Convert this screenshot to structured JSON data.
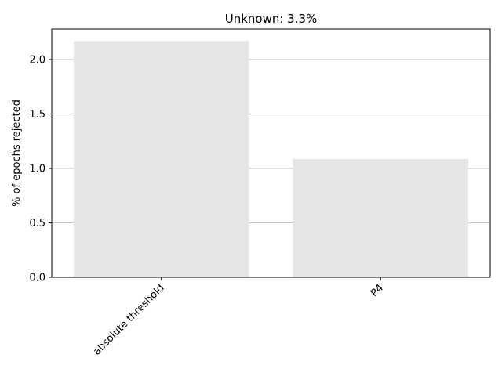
{
  "chart_data": {
    "type": "bar",
    "title": "Unknown: 3.3%",
    "xlabel": "",
    "ylabel": "% of epochs rejected",
    "categories": [
      "absolute threshold",
      "P4"
    ],
    "values": [
      2.17,
      1.087
    ],
    "ylim": [
      0,
      2.28
    ],
    "yticks": [
      "0.0",
      "0.5",
      "1.0",
      "1.5",
      "2.0"
    ],
    "grid": "horizontal",
    "colors": {
      "bar": "#e5e5e5",
      "grid": "#b0b0b0",
      "axis": "#000000"
    }
  }
}
